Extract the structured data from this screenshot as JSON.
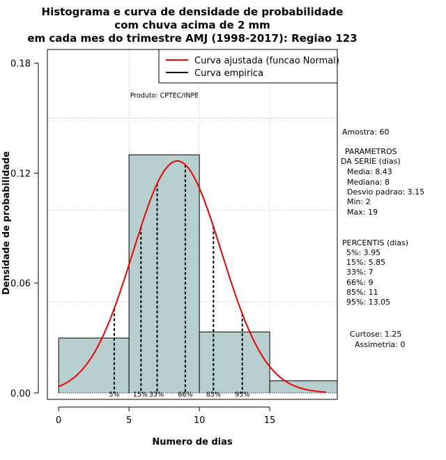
{
  "chart_data": {
    "type": "bar",
    "title_lines": [
      "Histograma e curva de densidade de probabilidade",
      "com chuva acima de 2 mm",
      "em cada mes do trimestre AMJ (1998-2017): Regiao 123"
    ],
    "xlabel": "Numero de dias",
    "ylabel": "Densidade de probabilidade",
    "xlim": [
      -0.8,
      19.8
    ],
    "ylim": [
      -0.0035,
      0.1875
    ],
    "x_ticks": [
      0,
      5,
      10,
      15
    ],
    "x_tick_labels": [
      "0",
      "5",
      "10",
      "15"
    ],
    "y_ticks": [
      0.0,
      0.06,
      0.12,
      0.18
    ],
    "y_tick_labels": [
      "0.00",
      "0.06",
      "0.12",
      "0.18"
    ],
    "grid_x": [
      5,
      10,
      15
    ],
    "grid_y": [
      0.05,
      0.1,
      0.15
    ],
    "bins": [
      {
        "from": 0,
        "to": 5,
        "density": 0.03
      },
      {
        "from": 5,
        "to": 10,
        "density": 0.13
      },
      {
        "from": 10,
        "to": 15,
        "density": 0.0333
      },
      {
        "from": 15,
        "to": 20,
        "density": 0.0067
      }
    ],
    "bar_color": "#b7cfcf",
    "curve_color": "#ee0000",
    "normal_fit": {
      "mean": 8.43,
      "sd": 3.15,
      "x_from": 0,
      "x_to": 19
    },
    "percentile_lines": [
      {
        "label": "5%",
        "x": 3.95
      },
      {
        "label": "15%",
        "x": 5.85
      },
      {
        "label": "33%",
        "x": 7
      },
      {
        "label": "66%",
        "x": 9
      },
      {
        "label": "85%",
        "x": 11
      },
      {
        "label": "95%",
        "x": 13.05
      }
    ],
    "legend": {
      "placement": "top-right",
      "entries": [
        {
          "label": "Curva ajustada (funcao Normal)",
          "color": "#ee0000"
        },
        {
          "label": "Curva empirica",
          "color": "#000000"
        }
      ]
    },
    "credit": "Produto: CPTEC/INPE"
  },
  "stats_panel": {
    "amostra": "Amostra: 60",
    "param_header_1": "PARAMETROS",
    "param_header_2": "DA SERIE (dias)",
    "media": "Media: 8.43",
    "mediana": "Mediana: 8",
    "desvio": "Desvio padrao: 3.15",
    "min": "Min: 2",
    "max": "Max: 19",
    "perc_header": "PERCENTIS (dias)",
    "p5": "5%: 3.95",
    "p15": "15%: 5.85",
    "p33": "33%: 7",
    "p66": "66%: 9",
    "p85": "85%: 11",
    "p95": "95%: 13.05",
    "curtose": "Curtose: 1.25",
    "assimetria": "Assimetria: 0"
  }
}
